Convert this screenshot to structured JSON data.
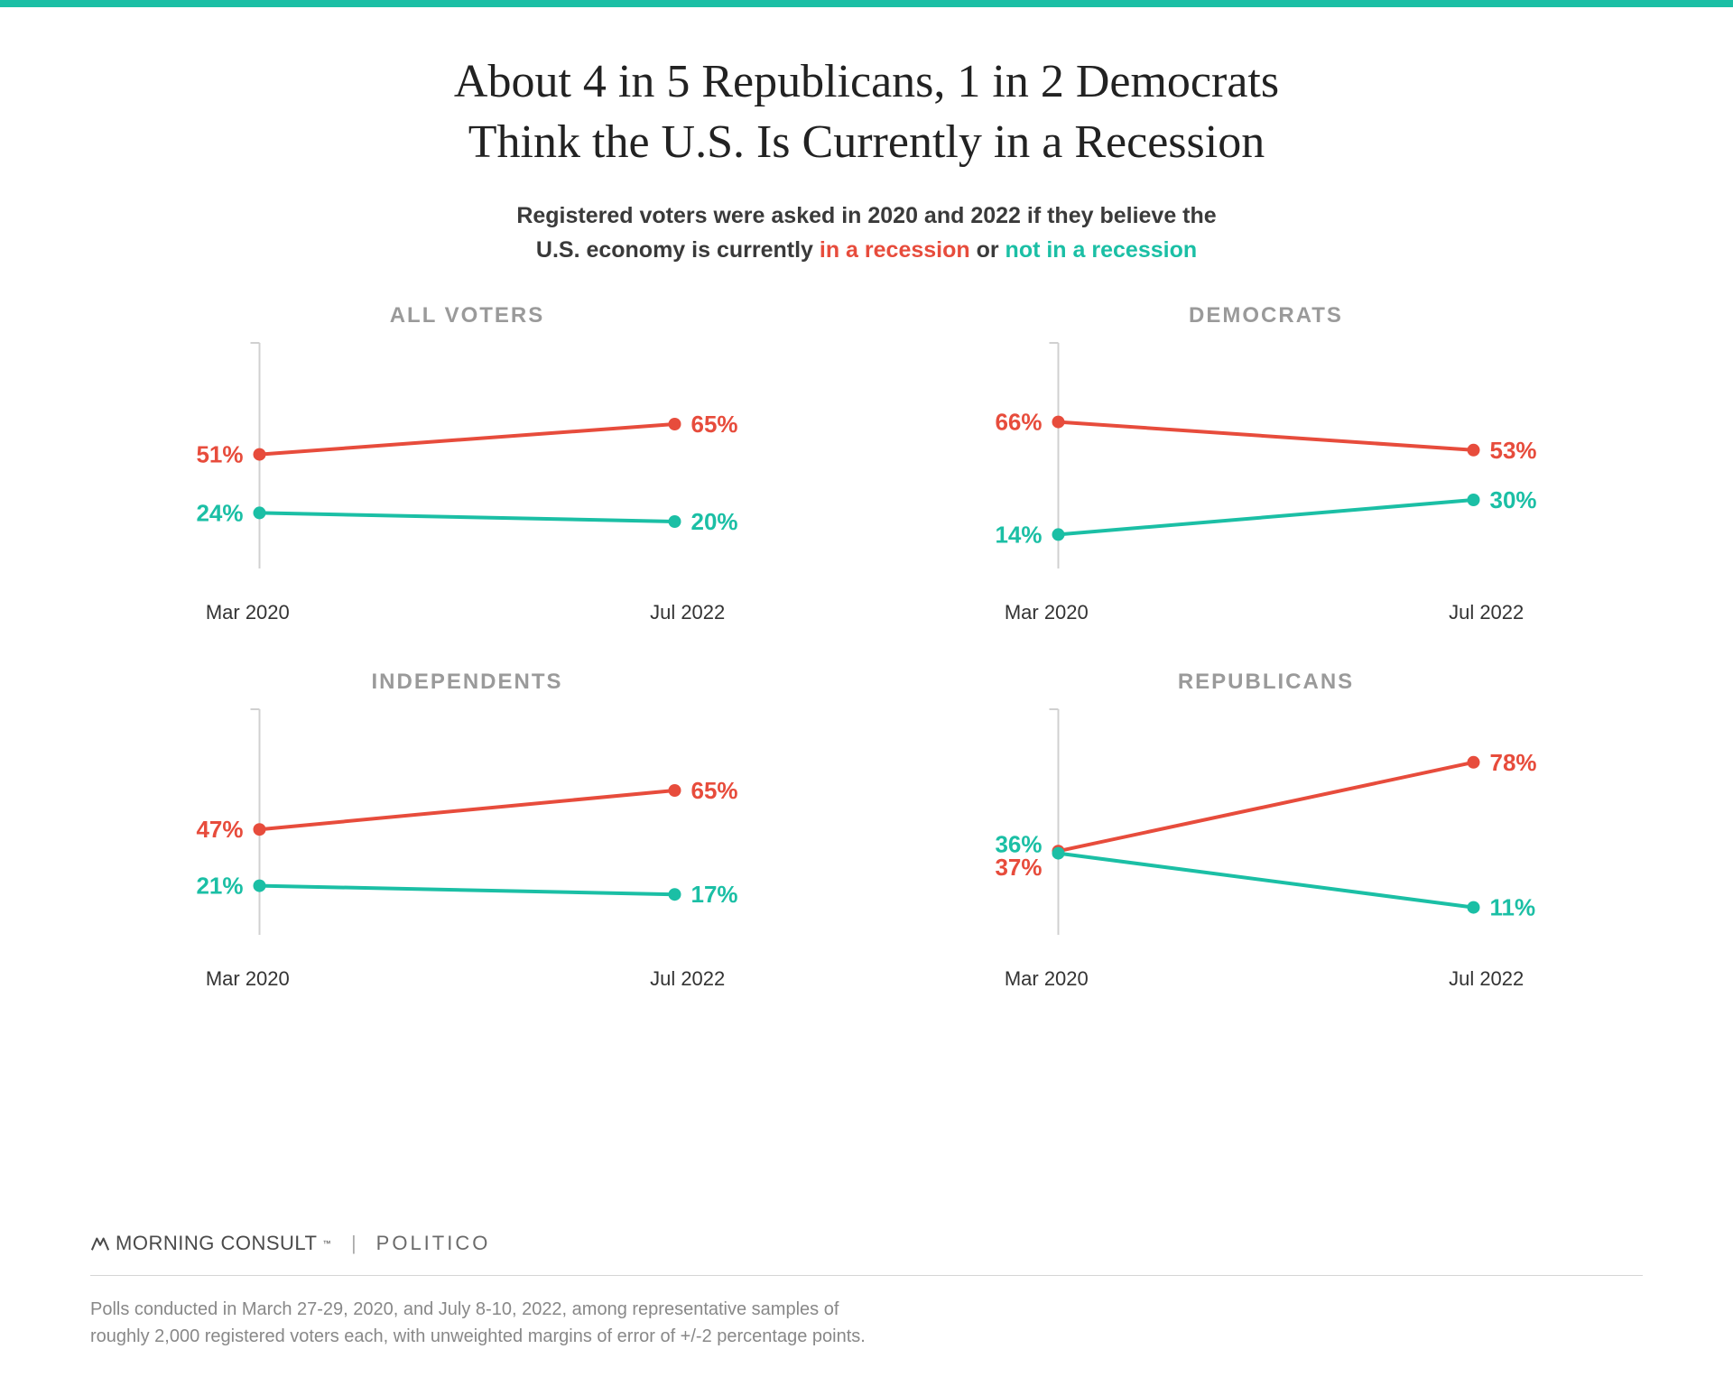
{
  "colors": {
    "accent_bar": "#1bbfa5",
    "series_recession": "#e74c3c",
    "series_not_recession": "#1bbfa5",
    "axis_line": "#d0d0d0",
    "title": "#222222",
    "panel_title": "#9a9a9a",
    "xlabel": "#333333",
    "footnote": "#888888",
    "background": "#ffffff"
  },
  "title_line1": "About 4 in 5 Republicans, 1 in 2 Democrats",
  "title_line2": "Think the U.S. Is Currently in a Recession",
  "subtitle_pre": "Registered voters were asked in 2020 and 2022 if they believe the",
  "subtitle_mid1": "U.S. economy is currently ",
  "subtitle_red": "in a recession",
  "subtitle_mid2": " or ",
  "subtitle_green": "not in a recession",
  "chart": {
    "type": "line",
    "ylim": [
      0,
      100
    ],
    "x_labels": [
      "Mar 2020",
      "Jul 2022"
    ],
    "line_width": 4,
    "marker_radius": 7,
    "value_fontsize": 26,
    "value_fontweight": 700,
    "panel_title_fontsize": 24,
    "xlabel_fontsize": 22
  },
  "panels": [
    {
      "title": "ALL VOTERS",
      "series": [
        {
          "key": "recession",
          "values": [
            51,
            65
          ],
          "labels": [
            "51%",
            "65%"
          ]
        },
        {
          "key": "not_recession",
          "values": [
            24,
            20
          ],
          "labels": [
            "24%",
            "20%"
          ]
        }
      ]
    },
    {
      "title": "DEMOCRATS",
      "series": [
        {
          "key": "recession",
          "values": [
            66,
            53
          ],
          "labels": [
            "66%",
            "53%"
          ]
        },
        {
          "key": "not_recession",
          "values": [
            14,
            30
          ],
          "labels": [
            "14%",
            "30%"
          ]
        }
      ]
    },
    {
      "title": "INDEPENDENTS",
      "series": [
        {
          "key": "recession",
          "values": [
            47,
            65
          ],
          "labels": [
            "47%",
            "65%"
          ]
        },
        {
          "key": "not_recession",
          "values": [
            21,
            17
          ],
          "labels": [
            "21%",
            "17%"
          ]
        }
      ]
    },
    {
      "title": "REPUBLICANS",
      "series": [
        {
          "key": "recession",
          "values": [
            37,
            78
          ],
          "labels": [
            "37%",
            "78%"
          ],
          "start_label_offset_y": 18
        },
        {
          "key": "not_recession",
          "values": [
            36,
            11
          ],
          "labels": [
            "36%",
            "11%"
          ],
          "start_label_offset_y": -10
        }
      ]
    }
  ],
  "brands": {
    "morning_consult": "MORNING CONSULT",
    "politico": "POLITICO"
  },
  "footnote_line1": "Polls conducted in March 27-29, 2020, and July 8-10, 2022, among representative samples of",
  "footnote_line2": "roughly 2,000 registered voters each, with unweighted margins of error of +/-2 percentage points."
}
